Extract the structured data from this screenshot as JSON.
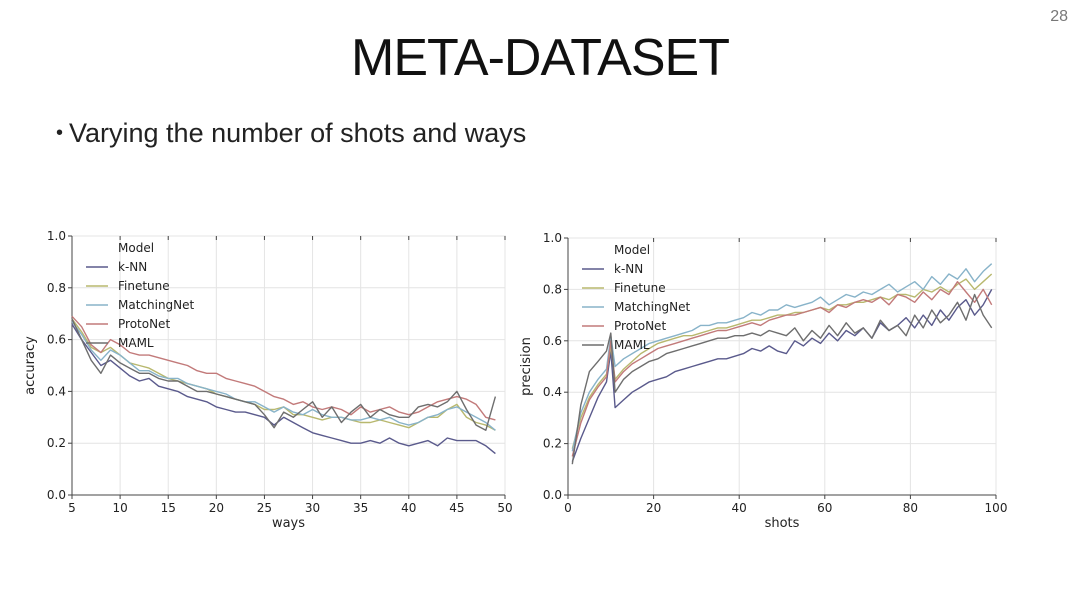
{
  "slide": {
    "number": "28",
    "title": "META-DATASET",
    "bullet": "Varying the number of shots and ways"
  },
  "chart_data": [
    {
      "type": "line",
      "xlabel": "ways",
      "ylabel": "accuracy",
      "xlim": [
        5,
        50
      ],
      "ylim": [
        0,
        1
      ],
      "xticks": [
        "5",
        "10",
        "15",
        "20",
        "25",
        "30",
        "35",
        "40",
        "45",
        "50"
      ],
      "yticks": [
        "0.0",
        "0.2",
        "0.4",
        "0.6",
        "0.8",
        "1.0"
      ],
      "grid": true,
      "legend": {
        "title": "Model",
        "placement": "top-left"
      },
      "x": [
        5,
        6,
        7,
        8,
        9,
        10,
        11,
        12,
        13,
        14,
        15,
        16,
        17,
        18,
        19,
        20,
        21,
        22,
        23,
        24,
        25,
        26,
        27,
        28,
        29,
        30,
        31,
        32,
        33,
        34,
        35,
        36,
        37,
        38,
        39,
        40,
        41,
        42,
        43,
        44,
        45,
        46,
        47,
        48,
        49
      ],
      "series": [
        {
          "name": "k-NN",
          "color": "#5a5a8c",
          "values": [
            0.66,
            0.6,
            0.55,
            0.5,
            0.52,
            0.49,
            0.46,
            0.44,
            0.45,
            0.42,
            0.41,
            0.4,
            0.38,
            0.37,
            0.36,
            0.34,
            0.33,
            0.32,
            0.32,
            0.31,
            0.3,
            0.27,
            0.3,
            0.28,
            0.26,
            0.24,
            0.23,
            0.22,
            0.21,
            0.2,
            0.2,
            0.21,
            0.2,
            0.22,
            0.2,
            0.19,
            0.2,
            0.21,
            0.19,
            0.22,
            0.21,
            0.21,
            0.21,
            0.19,
            0.16
          ]
        },
        {
          "name": "Finetune",
          "color": "#b8b86e",
          "values": [
            0.68,
            0.63,
            0.57,
            0.55,
            0.57,
            0.54,
            0.51,
            0.5,
            0.49,
            0.47,
            0.45,
            0.44,
            0.43,
            0.42,
            0.41,
            0.39,
            0.38,
            0.37,
            0.36,
            0.35,
            0.33,
            0.33,
            0.34,
            0.31,
            0.31,
            0.3,
            0.29,
            0.3,
            0.3,
            0.29,
            0.28,
            0.28,
            0.29,
            0.28,
            0.27,
            0.26,
            0.28,
            0.3,
            0.3,
            0.33,
            0.35,
            0.3,
            0.28,
            0.27,
            0.25
          ]
        },
        {
          "name": "MatchingNet",
          "color": "#88b3c9",
          "values": [
            0.67,
            0.62,
            0.56,
            0.52,
            0.56,
            0.54,
            0.51,
            0.48,
            0.48,
            0.46,
            0.45,
            0.45,
            0.43,
            0.42,
            0.41,
            0.4,
            0.39,
            0.37,
            0.36,
            0.36,
            0.34,
            0.32,
            0.34,
            0.32,
            0.31,
            0.33,
            0.31,
            0.3,
            0.3,
            0.29,
            0.29,
            0.3,
            0.29,
            0.3,
            0.28,
            0.27,
            0.28,
            0.3,
            0.31,
            0.33,
            0.34,
            0.32,
            0.3,
            0.28,
            0.25
          ]
        },
        {
          "name": "ProtoNet",
          "color": "#c27a7a",
          "values": [
            0.69,
            0.65,
            0.58,
            0.55,
            0.6,
            0.58,
            0.55,
            0.54,
            0.54,
            0.53,
            0.52,
            0.51,
            0.5,
            0.48,
            0.47,
            0.47,
            0.45,
            0.44,
            0.43,
            0.42,
            0.4,
            0.38,
            0.37,
            0.35,
            0.36,
            0.34,
            0.33,
            0.34,
            0.33,
            0.31,
            0.34,
            0.32,
            0.33,
            0.34,
            0.32,
            0.31,
            0.32,
            0.34,
            0.36,
            0.37,
            0.38,
            0.37,
            0.35,
            0.3,
            0.29
          ]
        },
        {
          "name": "MAML",
          "color": "#6e6e6e",
          "values": [
            0.68,
            0.6,
            0.52,
            0.47,
            0.54,
            0.51,
            0.49,
            0.47,
            0.47,
            0.45,
            0.44,
            0.44,
            0.42,
            0.4,
            0.4,
            0.39,
            0.38,
            0.37,
            0.36,
            0.35,
            0.31,
            0.26,
            0.32,
            0.3,
            0.33,
            0.36,
            0.3,
            0.34,
            0.28,
            0.32,
            0.35,
            0.3,
            0.33,
            0.31,
            0.3,
            0.3,
            0.34,
            0.35,
            0.34,
            0.36,
            0.4,
            0.33,
            0.27,
            0.25,
            0.38
          ]
        }
      ]
    },
    {
      "type": "line",
      "xlabel": "shots",
      "ylabel": "precision",
      "xlim": [
        0,
        100
      ],
      "ylim": [
        0,
        1
      ],
      "xticks": [
        "0",
        "20",
        "40",
        "60",
        "80",
        "100"
      ],
      "yticks": [
        "0.0",
        "0.2",
        "0.4",
        "0.6",
        "0.8",
        "1.0"
      ],
      "grid": true,
      "legend": {
        "title": "Model",
        "placement": "top-left"
      },
      "x": [
        1,
        3,
        5,
        7,
        9,
        10,
        11,
        13,
        15,
        17,
        19,
        21,
        23,
        25,
        27,
        29,
        31,
        33,
        35,
        37,
        39,
        41,
        43,
        45,
        47,
        49,
        51,
        53,
        55,
        57,
        59,
        61,
        63,
        65,
        67,
        69,
        71,
        73,
        75,
        77,
        79,
        81,
        83,
        85,
        87,
        89,
        91,
        93,
        95,
        97,
        99
      ],
      "series": [
        {
          "name": "k-NN",
          "color": "#5a5a8c",
          "values": [
            0.13,
            0.22,
            0.3,
            0.38,
            0.44,
            0.56,
            0.34,
            0.37,
            0.4,
            0.42,
            0.44,
            0.45,
            0.46,
            0.48,
            0.49,
            0.5,
            0.51,
            0.52,
            0.53,
            0.53,
            0.54,
            0.55,
            0.57,
            0.56,
            0.58,
            0.56,
            0.55,
            0.6,
            0.58,
            0.61,
            0.59,
            0.63,
            0.6,
            0.64,
            0.62,
            0.65,
            0.61,
            0.67,
            0.64,
            0.66,
            0.69,
            0.65,
            0.7,
            0.66,
            0.72,
            0.68,
            0.73,
            0.76,
            0.7,
            0.74,
            0.8
          ]
        },
        {
          "name": "Finetune",
          "color": "#b8b86e",
          "values": [
            0.18,
            0.3,
            0.38,
            0.43,
            0.47,
            0.58,
            0.45,
            0.49,
            0.52,
            0.55,
            0.57,
            0.59,
            0.6,
            0.61,
            0.62,
            0.62,
            0.63,
            0.64,
            0.65,
            0.65,
            0.66,
            0.67,
            0.68,
            0.68,
            0.69,
            0.7,
            0.7,
            0.71,
            0.71,
            0.72,
            0.73,
            0.72,
            0.74,
            0.74,
            0.75,
            0.75,
            0.76,
            0.77,
            0.76,
            0.78,
            0.78,
            0.77,
            0.8,
            0.79,
            0.81,
            0.79,
            0.82,
            0.84,
            0.8,
            0.83,
            0.86
          ]
        },
        {
          "name": "MatchingNet",
          "color": "#88b3c9",
          "values": [
            0.17,
            0.32,
            0.4,
            0.45,
            0.49,
            0.62,
            0.5,
            0.53,
            0.55,
            0.57,
            0.59,
            0.6,
            0.61,
            0.62,
            0.63,
            0.64,
            0.66,
            0.66,
            0.67,
            0.67,
            0.68,
            0.69,
            0.71,
            0.7,
            0.72,
            0.72,
            0.74,
            0.73,
            0.74,
            0.75,
            0.77,
            0.74,
            0.76,
            0.78,
            0.77,
            0.79,
            0.78,
            0.8,
            0.82,
            0.79,
            0.81,
            0.83,
            0.8,
            0.85,
            0.82,
            0.86,
            0.84,
            0.88,
            0.83,
            0.87,
            0.9
          ]
        },
        {
          "name": "ProtoNet",
          "color": "#c27a7a",
          "values": [
            0.15,
            0.28,
            0.37,
            0.42,
            0.46,
            0.6,
            0.44,
            0.48,
            0.51,
            0.53,
            0.55,
            0.57,
            0.58,
            0.59,
            0.6,
            0.61,
            0.62,
            0.63,
            0.64,
            0.64,
            0.65,
            0.66,
            0.67,
            0.66,
            0.68,
            0.69,
            0.7,
            0.7,
            0.71,
            0.72,
            0.73,
            0.71,
            0.74,
            0.73,
            0.75,
            0.76,
            0.75,
            0.77,
            0.74,
            0.78,
            0.77,
            0.75,
            0.79,
            0.76,
            0.8,
            0.78,
            0.83,
            0.79,
            0.75,
            0.8,
            0.74
          ]
        },
        {
          "name": "MAML",
          "color": "#6e6e6e",
          "values": [
            0.12,
            0.35,
            0.48,
            0.52,
            0.56,
            0.63,
            0.4,
            0.45,
            0.48,
            0.5,
            0.52,
            0.53,
            0.55,
            0.56,
            0.57,
            0.58,
            0.59,
            0.6,
            0.61,
            0.61,
            0.62,
            0.62,
            0.63,
            0.62,
            0.64,
            0.63,
            0.62,
            0.65,
            0.6,
            0.64,
            0.61,
            0.66,
            0.62,
            0.67,
            0.63,
            0.65,
            0.61,
            0.68,
            0.64,
            0.66,
            0.62,
            0.7,
            0.65,
            0.72,
            0.67,
            0.7,
            0.75,
            0.68,
            0.78,
            0.7,
            0.65
          ]
        }
      ]
    }
  ]
}
